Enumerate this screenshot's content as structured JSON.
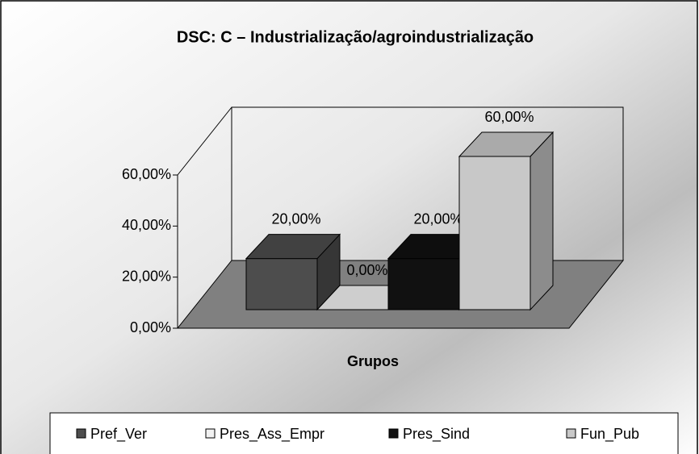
{
  "chart_data": {
    "type": "bar3d",
    "title": "DSC: C – Industrialização/agroindustrialização",
    "x_label": "Grupos",
    "ylim": [
      0,
      60
    ],
    "yticks": [
      {
        "value": 0,
        "label": "0,00%"
      },
      {
        "value": 20,
        "label": "20,00%"
      },
      {
        "value": 40,
        "label": "40,00%"
      },
      {
        "value": 60,
        "label": "60,00%"
      }
    ],
    "legend": "bottom",
    "series": [
      {
        "name": "Pref_Ver",
        "color": "#4d4d4d",
        "values": [
          20
        ],
        "value_labels": [
          "20,00%"
        ]
      },
      {
        "name": "Pres_Ass_Empr",
        "color": "#f2f2f2",
        "values": [
          0
        ],
        "value_labels": [
          "0,00%"
        ]
      },
      {
        "name": "Pres_Sind",
        "color": "#111111",
        "values": [
          20
        ],
        "value_labels": [
          "20,00%"
        ]
      },
      {
        "name": "Fun_Pub",
        "color": "#c8c8c8",
        "values": [
          60
        ],
        "value_labels": [
          "60,00%"
        ]
      }
    ]
  }
}
